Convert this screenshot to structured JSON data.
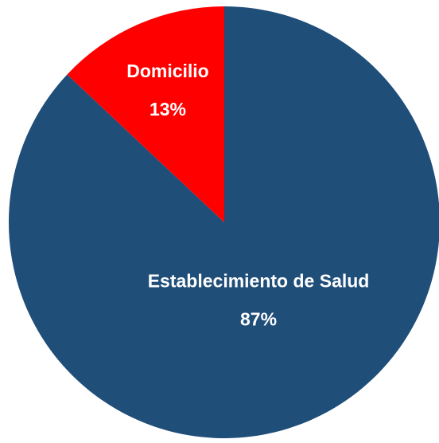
{
  "chart_data": {
    "type": "pie",
    "categories": [
      "Establecimiento de Salud",
      "Domicilio"
    ],
    "values": [
      87,
      13
    ],
    "value_labels": [
      "87%",
      "13%"
    ],
    "colors": [
      "#1f4e79",
      "#ff0000"
    ]
  }
}
